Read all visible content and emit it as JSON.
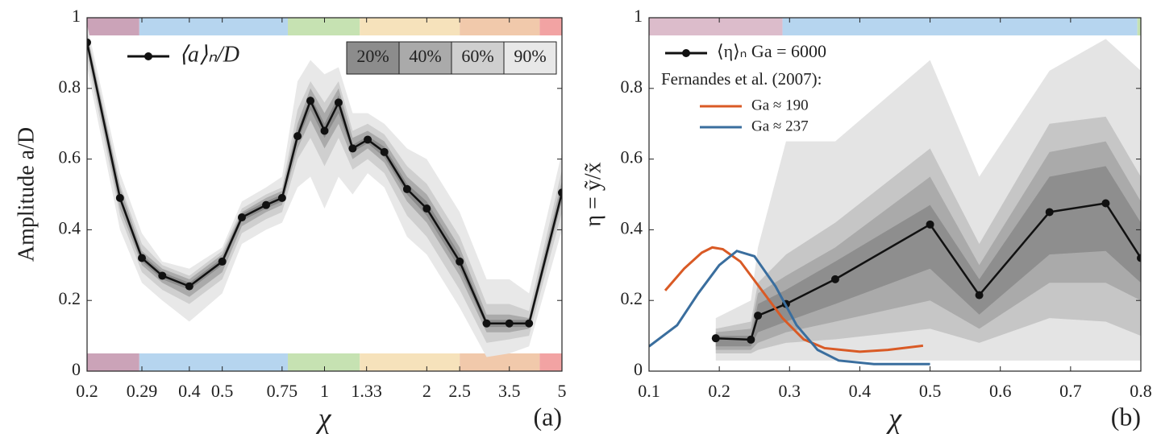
{
  "chart_data": [
    {
      "type": "line",
      "xscale": "log",
      "panel_label": "(a)",
      "x_label": "χ",
      "y_label": "Amplitude a/D",
      "xlim": [
        0.2,
        5
      ],
      "ylim": [
        0,
        1
      ],
      "xticks": [
        0.2,
        0.29,
        0.4,
        0.5,
        0.75,
        1,
        1.33,
        2,
        2.5,
        3.5,
        5
      ],
      "yticks": [
        0,
        0.2,
        0.4,
        0.6,
        0.8,
        1
      ],
      "strip_positions": [
        "top",
        "bottom"
      ],
      "regions": [
        {
          "from": 0.2,
          "to": 0.285,
          "color": "#cba3b8"
        },
        {
          "from": 0.285,
          "to": 0.78,
          "color": "#b6d5ef"
        },
        {
          "from": 0.78,
          "to": 1.27,
          "color": "#c6e2b2"
        },
        {
          "from": 1.27,
          "to": 2.5,
          "color": "#f6e2bb"
        },
        {
          "from": 2.5,
          "to": 4.3,
          "color": "#f1c9ab"
        },
        {
          "from": 4.3,
          "to": 5,
          "color": "#f2a3a3"
        }
      ],
      "x": [
        0.2,
        0.25,
        0.29,
        0.333,
        0.4,
        0.5,
        0.571,
        0.673,
        0.75,
        0.833,
        0.909,
        1.0,
        1.1,
        1.21,
        1.34,
        1.5,
        1.75,
        2.0,
        2.5,
        3.0,
        3.5,
        4.0,
        5.0
      ],
      "series": [
        {
          "name": "⟨a⟩ₙ/D",
          "color": "#111111",
          "markers": true,
          "values": [
            0.93,
            0.49,
            0.32,
            0.27,
            0.24,
            0.31,
            0.435,
            0.47,
            0.49,
            0.665,
            0.765,
            0.68,
            0.76,
            0.63,
            0.655,
            0.62,
            0.515,
            0.46,
            0.31,
            0.135,
            0.135,
            0.135,
            0.505
          ]
        }
      ],
      "bands": [
        {
          "name": "90%",
          "color": "#e8e8e8",
          "lower": [
            0.86,
            0.4,
            0.25,
            0.2,
            0.14,
            0.22,
            0.36,
            0.4,
            0.42,
            0.52,
            0.55,
            0.46,
            0.55,
            0.5,
            0.56,
            0.52,
            0.38,
            0.33,
            0.18,
            0.04,
            0.05,
            0.07,
            0.4
          ],
          "upper": [
            0.98,
            0.56,
            0.39,
            0.31,
            0.29,
            0.35,
            0.48,
            0.52,
            0.55,
            0.82,
            0.88,
            0.84,
            0.86,
            0.73,
            0.73,
            0.7,
            0.63,
            0.6,
            0.45,
            0.26,
            0.26,
            0.22,
            0.62
          ]
        },
        {
          "name": "60%",
          "color": "#cfcfcf",
          "lower": [
            0.89,
            0.44,
            0.28,
            0.23,
            0.19,
            0.26,
            0.39,
            0.43,
            0.45,
            0.6,
            0.66,
            0.58,
            0.66,
            0.57,
            0.6,
            0.56,
            0.44,
            0.38,
            0.23,
            0.08,
            0.09,
            0.1,
            0.45
          ],
          "upper": [
            0.96,
            0.53,
            0.36,
            0.3,
            0.27,
            0.34,
            0.46,
            0.5,
            0.52,
            0.74,
            0.82,
            0.76,
            0.82,
            0.68,
            0.7,
            0.67,
            0.58,
            0.53,
            0.38,
            0.19,
            0.19,
            0.17,
            0.57
          ]
        },
        {
          "name": "40%",
          "color": "#aaaaaa",
          "lower": [
            0.91,
            0.46,
            0.3,
            0.25,
            0.21,
            0.28,
            0.41,
            0.45,
            0.47,
            0.63,
            0.71,
            0.63,
            0.7,
            0.6,
            0.63,
            0.59,
            0.48,
            0.42,
            0.27,
            0.11,
            0.11,
            0.12,
            0.48
          ],
          "upper": [
            0.95,
            0.52,
            0.34,
            0.29,
            0.26,
            0.33,
            0.45,
            0.49,
            0.51,
            0.7,
            0.8,
            0.73,
            0.8,
            0.66,
            0.68,
            0.65,
            0.55,
            0.5,
            0.35,
            0.16,
            0.16,
            0.15,
            0.54
          ]
        },
        {
          "name": "20%",
          "color": "#8c8c8c",
          "lower": [
            0.92,
            0.48,
            0.31,
            0.26,
            0.23,
            0.3,
            0.425,
            0.46,
            0.48,
            0.65,
            0.74,
            0.66,
            0.73,
            0.62,
            0.645,
            0.605,
            0.5,
            0.44,
            0.29,
            0.125,
            0.125,
            0.125,
            0.495
          ],
          "upper": [
            0.94,
            0.5,
            0.33,
            0.28,
            0.25,
            0.32,
            0.445,
            0.48,
            0.5,
            0.68,
            0.78,
            0.7,
            0.78,
            0.64,
            0.665,
            0.635,
            0.53,
            0.48,
            0.33,
            0.145,
            0.145,
            0.145,
            0.515
          ]
        }
      ]
    },
    {
      "type": "line",
      "panel_label": "(b)",
      "x_label": "χ",
      "y_label": "η = ỹ/x̃",
      "xlim": [
        0.1,
        0.8
      ],
      "ylim": [
        0,
        1
      ],
      "xticks": [
        0.1,
        0.2,
        0.3,
        0.4,
        0.5,
        0.6,
        0.7,
        0.8
      ],
      "yticks": [
        0,
        0.2,
        0.4,
        0.6,
        0.8,
        1
      ],
      "strip_positions": [
        "top"
      ],
      "regions": [
        {
          "from": 0.1,
          "to": 0.29,
          "color": "#dcbccb"
        },
        {
          "from": 0.29,
          "to": 0.795,
          "color": "#b6d5ef"
        },
        {
          "from": 0.795,
          "to": 0.8,
          "color": "#c6e2b2"
        }
      ],
      "legend_note": "Fernandes et al. (2007):",
      "x": [
        0.195,
        0.245,
        0.255,
        0.295,
        0.365,
        0.5,
        0.57,
        0.67,
        0.75,
        0.8
      ],
      "series": [
        {
          "name": "⟨η⟩ₙ  Ga = 6000",
          "color": "#111111",
          "markers": true,
          "values": [
            0.093,
            0.089,
            0.157,
            0.19,
            0.26,
            0.415,
            0.215,
            0.45,
            0.475,
            0.32
          ]
        },
        {
          "name": "Ga ≈ 190",
          "color": "#d95a25",
          "x": [
            0.123,
            0.15,
            0.175,
            0.19,
            0.205,
            0.23,
            0.26,
            0.29,
            0.32,
            0.35,
            0.4,
            0.44,
            0.49
          ],
          "values": [
            0.228,
            0.29,
            0.335,
            0.35,
            0.345,
            0.31,
            0.23,
            0.15,
            0.09,
            0.065,
            0.055,
            0.06,
            0.072
          ]
        },
        {
          "name": "Ga ≈ 237",
          "color": "#3a6e9e",
          "x": [
            0.1,
            0.14,
            0.17,
            0.2,
            0.225,
            0.25,
            0.28,
            0.31,
            0.34,
            0.37,
            0.42,
            0.5
          ],
          "values": [
            0.07,
            0.13,
            0.22,
            0.3,
            0.34,
            0.325,
            0.24,
            0.13,
            0.06,
            0.03,
            0.02,
            0.02
          ]
        }
      ],
      "bands": [
        {
          "color": "#e4e4e4",
          "lower": [
            0.03,
            0.03,
            0.03,
            0.03,
            0.03,
            0.03,
            0.03,
            0.03,
            0.03,
            0.03
          ],
          "upper": [
            0.15,
            0.2,
            0.35,
            0.65,
            0.65,
            0.88,
            0.55,
            0.85,
            0.94,
            0.85
          ]
        },
        {
          "color": "#c6c6c6",
          "lower": [
            0.05,
            0.05,
            0.06,
            0.08,
            0.09,
            0.12,
            0.08,
            0.15,
            0.14,
            0.1
          ],
          "upper": [
            0.12,
            0.14,
            0.25,
            0.33,
            0.42,
            0.63,
            0.36,
            0.7,
            0.72,
            0.55
          ]
        },
        {
          "color": "#aaaaaa",
          "lower": [
            0.06,
            0.06,
            0.08,
            0.11,
            0.14,
            0.2,
            0.12,
            0.25,
            0.25,
            0.2
          ],
          "upper": [
            0.11,
            0.12,
            0.22,
            0.27,
            0.35,
            0.55,
            0.3,
            0.62,
            0.65,
            0.48
          ]
        },
        {
          "color": "#8e8e8e",
          "lower": [
            0.07,
            0.07,
            0.11,
            0.14,
            0.19,
            0.29,
            0.16,
            0.33,
            0.34,
            0.25
          ],
          "upper": [
            0.1,
            0.1,
            0.19,
            0.23,
            0.31,
            0.47,
            0.26,
            0.55,
            0.58,
            0.42
          ]
        }
      ]
    }
  ]
}
